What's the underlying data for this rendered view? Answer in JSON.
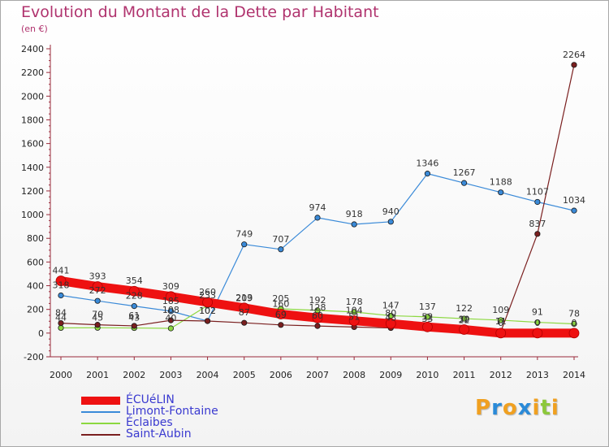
{
  "title": "Evolution du Montant de la Dette par Habitant",
  "subtitle": "(en €)",
  "logo": {
    "letters": [
      "P",
      "r",
      "o",
      "x",
      "i",
      "t",
      "i"
    ],
    "colors": [
      "#f0a020",
      "#2a8ad8",
      "#f0a020",
      "#2a8ad8",
      "#f0a020",
      "#8cc83a",
      "#f0a020"
    ]
  },
  "chart_data": {
    "type": "line",
    "x": [
      2000,
      2001,
      2002,
      2003,
      2004,
      2005,
      2006,
      2007,
      2008,
      2009,
      2010,
      2011,
      2012,
      2013,
      2014
    ],
    "ylim": [
      -200,
      2400
    ],
    "yticks": [
      -200,
      0,
      200,
      400,
      600,
      800,
      1000,
      1200,
      1400,
      1600,
      1800,
      2000,
      2200,
      2400
    ],
    "grid": false,
    "legend": "bottom-left",
    "series": [
      {
        "name": "Limont-Fontaine",
        "color": "#3a8ad8",
        "width": 1.2,
        "marker": 3.2,
        "values": [
          318,
          272,
          228,
          185,
          102,
          749,
          707,
          974,
          918,
          940,
          1346,
          1267,
          1188,
          1107,
          1034
        ],
        "labels": [
          "318",
          "272",
          "228",
          "185",
          "102",
          "749",
          "707",
          "974",
          "918",
          "940",
          "1346",
          "1267",
          "1188",
          "1107",
          "1034"
        ]
      },
      {
        "name": "Éclaibes",
        "color": "#8cd840",
        "width": 1.2,
        "marker": 3.2,
        "values": [
          44,
          45,
          43,
          40,
          233,
          209,
          205,
          192,
          178,
          147,
          137,
          122,
          109,
          91,
          78
        ],
        "labels": [
          "44",
          "45",
          "43",
          "40",
          "233",
          "209",
          "205",
          "192",
          "178",
          "147",
          "137",
          "122",
          "109",
          "91",
          "78"
        ]
      },
      {
        "name": "Saint-Aubin",
        "color": "#7a1f1f",
        "width": 1.2,
        "marker": 3.2,
        "values": [
          84,
          70,
          61,
          108,
          102,
          87,
          69,
          60,
          51,
          43,
          33,
          22,
          11,
          837,
          2264
        ],
        "labels": [
          "84",
          "70",
          "61",
          "108",
          "102",
          "87",
          "69",
          "60",
          "51",
          "43",
          "33",
          "22",
          "11",
          "837",
          "2264"
        ]
      },
      {
        "name": "ÉCUéLIN",
        "color": "#ee1111",
        "width": 11,
        "marker": 6,
        "values": [
          441,
          393,
          354,
          309,
          260,
          213,
          160,
          128,
          104,
          80,
          52,
          30,
          0,
          0,
          0
        ],
        "labels": [
          "441",
          "393",
          "354",
          "309",
          "260",
          "213",
          "160",
          "128",
          "104",
          "80",
          "52",
          "30",
          "0",
          "0",
          "0"
        ]
      }
    ],
    "legend_order": [
      "ÉCUéLIN",
      "Limont-Fontaine",
      "Éclaibes",
      "Saint-Aubin"
    ]
  }
}
